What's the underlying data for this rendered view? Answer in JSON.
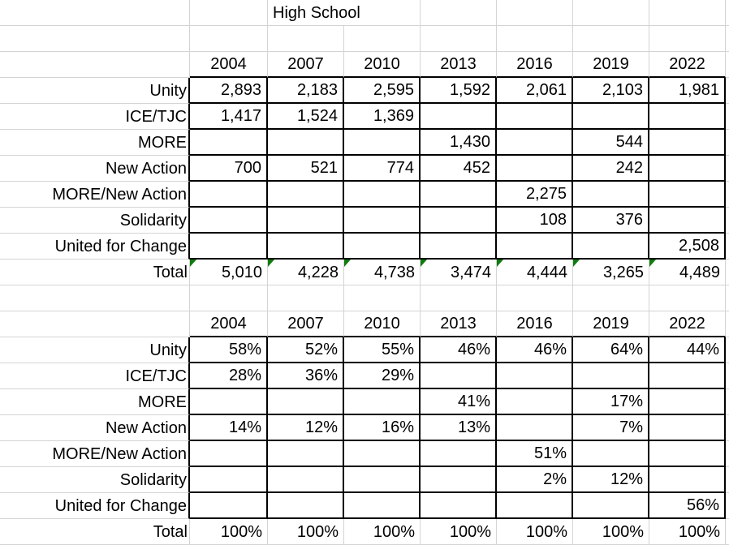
{
  "sheet": {
    "title": "High School",
    "years": [
      "2004",
      "2007",
      "2010",
      "2013",
      "2016",
      "2019",
      "2022"
    ],
    "counts": {
      "rows": [
        {
          "label": "Unity",
          "values": [
            "2,893",
            "2,183",
            "2,595",
            "1,592",
            "2,061",
            "2,103",
            "1,981"
          ]
        },
        {
          "label": "ICE/TJC",
          "values": [
            "1,417",
            "1,524",
            "1,369",
            "",
            "",
            "",
            ""
          ]
        },
        {
          "label": "MORE",
          "values": [
            "",
            "",
            "",
            "1,430",
            "",
            "544",
            ""
          ]
        },
        {
          "label": "New Action",
          "values": [
            "700",
            "521",
            "774",
            "452",
            "",
            "242",
            ""
          ]
        },
        {
          "label": "MORE/New Action",
          "values": [
            "",
            "",
            "",
            "",
            "2,275",
            "",
            ""
          ]
        },
        {
          "label": "Solidarity",
          "values": [
            "",
            "",
            "",
            "",
            "108",
            "376",
            ""
          ]
        },
        {
          "label": "United for Change",
          "values": [
            "",
            "",
            "",
            "",
            "",
            "",
            "2,508"
          ]
        }
      ],
      "total": {
        "label": "Total",
        "values": [
          "5,010",
          "4,228",
          "4,738",
          "3,474",
          "4,444",
          "3,265",
          "4,489"
        ]
      }
    },
    "percents": {
      "rows": [
        {
          "label": "Unity",
          "values": [
            "58%",
            "52%",
            "55%",
            "46%",
            "46%",
            "64%",
            "44%"
          ]
        },
        {
          "label": "ICE/TJC",
          "values": [
            "28%",
            "36%",
            "29%",
            "",
            "",
            "",
            ""
          ]
        },
        {
          "label": "MORE",
          "values": [
            "",
            "",
            "",
            "41%",
            "",
            "17%",
            ""
          ]
        },
        {
          "label": "New Action",
          "values": [
            "14%",
            "12%",
            "16%",
            "13%",
            "",
            "7%",
            ""
          ]
        },
        {
          "label": "MORE/New Action",
          "values": [
            "",
            "",
            "",
            "",
            "51%",
            "",
            ""
          ]
        },
        {
          "label": "Solidarity",
          "values": [
            "",
            "",
            "",
            "",
            "2%",
            "12%",
            ""
          ]
        },
        {
          "label": "United for Change",
          "values": [
            "",
            "",
            "",
            "",
            "",
            "",
            "56%"
          ]
        }
      ],
      "total": {
        "label": "Total",
        "values": [
          "100%",
          "100%",
          "100%",
          "100%",
          "100%",
          "100%",
          "100%"
        ]
      }
    }
  },
  "icons": {
    "error_indicator": "green-triangle-top-left"
  },
  "colors": {
    "background": "#ffffff",
    "text": "#000000",
    "gridline": "#d4d4d4",
    "border": "#000000",
    "error_indicator": "#107c10"
  }
}
